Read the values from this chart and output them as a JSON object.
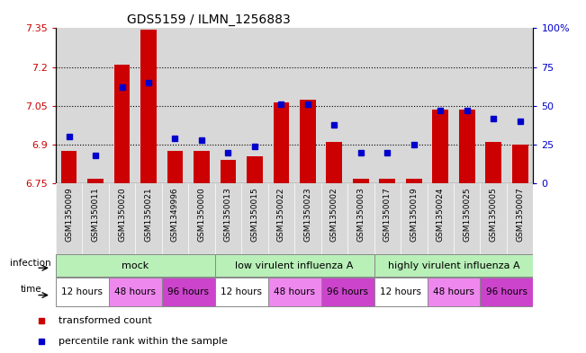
{
  "title": "GDS5159 / ILMN_1256883",
  "samples": [
    "GSM1350009",
    "GSM1350011",
    "GSM1350020",
    "GSM1350021",
    "GSM1349996",
    "GSM1350000",
    "GSM1350013",
    "GSM1350015",
    "GSM1350022",
    "GSM1350023",
    "GSM1350002",
    "GSM1350003",
    "GSM1350017",
    "GSM1350019",
    "GSM1350024",
    "GSM1350025",
    "GSM1350005",
    "GSM1350007"
  ],
  "bar_values": [
    6.875,
    6.77,
    7.21,
    7.345,
    6.875,
    6.875,
    6.84,
    6.855,
    7.065,
    7.075,
    6.91,
    6.77,
    6.77,
    6.77,
    7.035,
    7.035,
    6.91,
    6.9
  ],
  "percentile_values": [
    30,
    18,
    62,
    65,
    29,
    28,
    20,
    24,
    51,
    51,
    38,
    20,
    20,
    25,
    47,
    47,
    42,
    40
  ],
  "ylim_left": [
    6.75,
    7.35
  ],
  "ylim_right": [
    0,
    100
  ],
  "yticks_left": [
    6.75,
    6.9,
    7.05,
    7.2,
    7.35
  ],
  "yticks_right": [
    0,
    25,
    50,
    75,
    100
  ],
  "ytick_labels_left": [
    "6.75",
    "6.9",
    "7.05",
    "7.2",
    "7.35"
  ],
  "ytick_labels_right": [
    "0",
    "25",
    "50",
    "75",
    "100%"
  ],
  "bar_color": "#cc0000",
  "dot_color": "#0000cc",
  "bar_width": 0.6,
  "time_colors": {
    "12 hours": "#ffffff",
    "48 hours": "#ee88ee",
    "96 hours": "#cc44cc"
  },
  "infection_color": "#b8f0b8",
  "infection_groups": [
    {
      "label": "mock",
      "start": 0,
      "end": 6
    },
    {
      "label": "low virulent influenza A",
      "start": 6,
      "end": 12
    },
    {
      "label": "highly virulent influenza A",
      "start": 12,
      "end": 18
    }
  ],
  "time_groups": [
    {
      "label": "12 hours",
      "start": 0,
      "end": 2
    },
    {
      "label": "48 hours",
      "start": 2,
      "end": 4
    },
    {
      "label": "96 hours",
      "start": 4,
      "end": 6
    },
    {
      "label": "12 hours",
      "start": 6,
      "end": 8
    },
    {
      "label": "48 hours",
      "start": 8,
      "end": 10
    },
    {
      "label": "96 hours",
      "start": 10,
      "end": 12
    },
    {
      "label": "12 hours",
      "start": 12,
      "end": 14
    },
    {
      "label": "48 hours",
      "start": 14,
      "end": 16
    },
    {
      "label": "96 hours",
      "start": 16,
      "end": 18
    }
  ]
}
